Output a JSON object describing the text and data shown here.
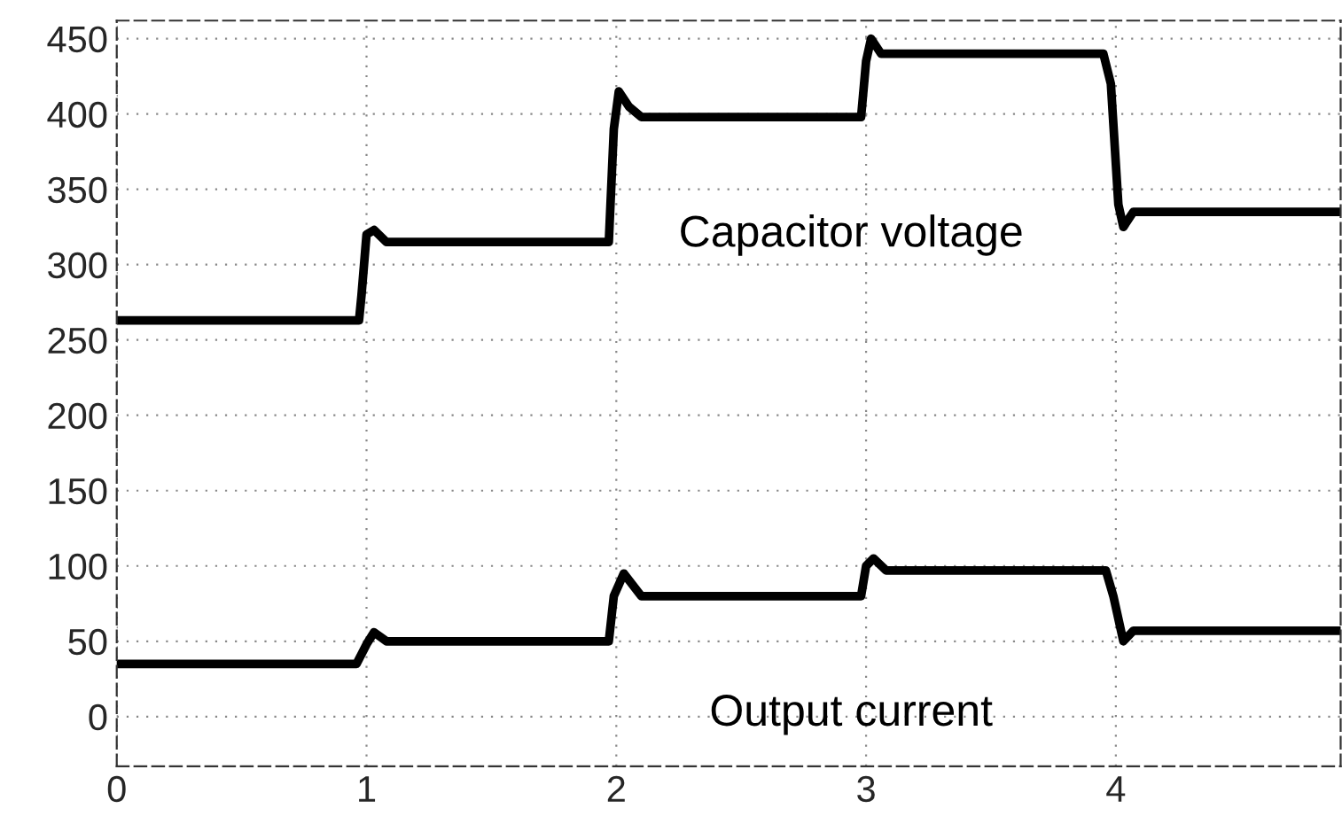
{
  "chart_data": {
    "type": "line",
    "series": [
      {
        "name": "Capacitor voltage",
        "color": "#000000",
        "x": [
          0,
          0.97,
          0.98,
          1.0,
          1.03,
          1.08,
          1.97,
          1.99,
          2.01,
          2.05,
          2.1,
          2.98,
          3.0,
          3.02,
          3.06,
          3.95,
          3.98,
          4.01,
          4.03,
          4.07,
          4.9
        ],
        "values": [
          263,
          263,
          280,
          320,
          323,
          315,
          315,
          390,
          415,
          405,
          398,
          398,
          435,
          450,
          440,
          440,
          420,
          340,
          325,
          335,
          335
        ]
      },
      {
        "name": "Output current",
        "color": "#000000",
        "x": [
          0,
          0.96,
          1.0,
          1.03,
          1.08,
          1.97,
          1.99,
          2.03,
          2.1,
          2.98,
          3.0,
          3.03,
          3.08,
          3.96,
          3.99,
          4.03,
          4.07,
          4.9
        ],
        "values": [
          35,
          35,
          48,
          56,
          50,
          50,
          80,
          95,
          80,
          80,
          100,
          105,
          97,
          97,
          80,
          50,
          57,
          57
        ]
      }
    ],
    "xlim": [
      0,
      4.9
    ],
    "ylim": [
      -33,
      462
    ],
    "xticks": [
      0,
      1,
      2,
      3,
      4
    ],
    "yticks": [
      0,
      50,
      100,
      150,
      200,
      250,
      300,
      350,
      400,
      450
    ],
    "grid": true,
    "marker": "none",
    "line_style": "solid"
  }
}
